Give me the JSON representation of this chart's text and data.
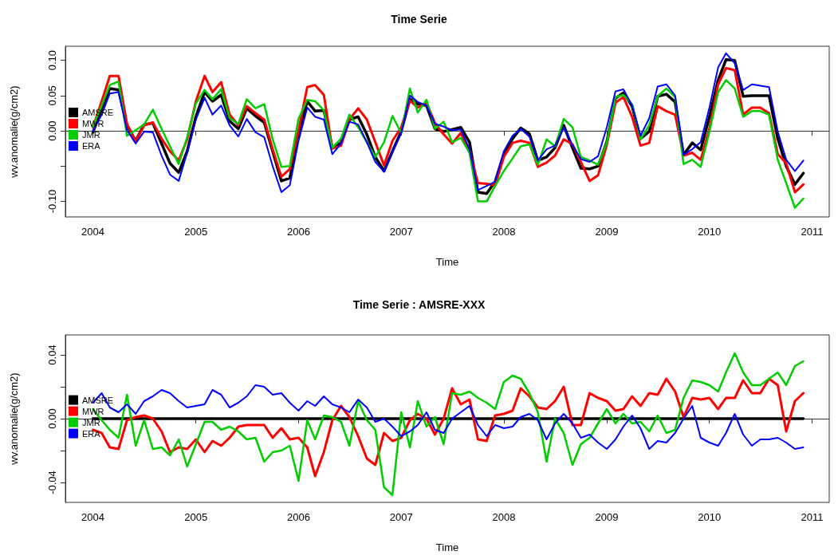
{
  "chart_data": [
    {
      "type": "line",
      "title": "Time Serie",
      "xlabel": "Time",
      "ylabel": "wv.anomalie(g/cm2)",
      "legend": "left",
      "x": [
        "2004-01",
        "2004-02",
        "2004-03",
        "2004-04",
        "2004-05",
        "2004-06",
        "2004-07",
        "2004-08",
        "2004-09",
        "2004-10",
        "2004-11",
        "2004-12",
        "2005-01",
        "2005-02",
        "2005-03",
        "2005-04",
        "2005-05",
        "2005-06",
        "2005-07",
        "2005-08",
        "2005-09",
        "2005-10",
        "2005-11",
        "2005-12",
        "2006-01",
        "2006-02",
        "2006-03",
        "2006-04",
        "2006-05",
        "2006-06",
        "2006-07",
        "2006-08",
        "2006-09",
        "2006-10",
        "2006-11",
        "2006-12",
        "2007-01",
        "2007-02",
        "2007-03",
        "2007-04",
        "2007-05",
        "2007-06",
        "2007-07",
        "2007-08",
        "2007-09",
        "2007-10",
        "2007-11",
        "2007-12",
        "2008-01",
        "2008-02",
        "2008-03",
        "2008-04",
        "2008-05",
        "2008-06",
        "2008-07",
        "2008-08",
        "2008-09",
        "2008-10",
        "2008-11",
        "2008-12",
        "2009-01",
        "2009-02",
        "2009-03",
        "2009-04",
        "2009-05",
        "2009-06",
        "2009-07",
        "2009-08",
        "2009-09",
        "2009-10",
        "2009-11",
        "2009-12",
        "2010-01",
        "2010-02",
        "2010-03",
        "2010-04",
        "2010-05",
        "2010-06",
        "2010-07",
        "2010-08",
        "2010-09",
        "2010-10",
        "2010-11",
        "2010-12"
      ],
      "xlim": [
        "2003-09-25",
        "2011-03-03"
      ],
      "xticks": [
        "2004",
        "2005",
        "2006",
        "2007",
        "2008",
        "2009",
        "2010",
        "2011"
      ],
      "ylim": [
        -0.122,
        0.12
      ],
      "yticks": [
        {
          "value": -0.1,
          "label": "-0.10"
        },
        {
          "value": -0.05,
          "label": null
        },
        {
          "value": 0,
          "label": "0.00"
        },
        {
          "value": 0.05,
          "label": "0.05"
        },
        {
          "value": 0.1,
          "label": "0.10"
        }
      ],
      "series": [
        {
          "name": "AMSRE",
          "color": "#000000",
          "values": [
            -0.002,
            0.031,
            0.06,
            0.058,
            0.008,
            -0.014,
            0.009,
            0.011,
            -0.018,
            -0.046,
            -0.059,
            -0.029,
            0.02,
            0.055,
            0.042,
            0.051,
            0.014,
            0.003,
            0.032,
            0.021,
            0.012,
            -0.029,
            -0.071,
            -0.067,
            -0.003,
            0.042,
            0.028,
            0.029,
            -0.024,
            -0.017,
            0.016,
            0.02,
            -0.005,
            -0.037,
            -0.057,
            -0.029,
            -0.001,
            0.045,
            0.038,
            0.036,
            0.003,
            -0.001,
            0.002,
            0.005,
            -0.016,
            -0.087,
            -0.089,
            -0.072,
            -0.033,
            -0.011,
            0.004,
            -0.004,
            -0.042,
            -0.037,
            -0.024,
            0.008,
            -0.024,
            -0.053,
            -0.054,
            -0.05,
            -0.016,
            0.046,
            0.054,
            0.035,
            -0.011,
            -0.001,
            0.049,
            0.052,
            0.041,
            -0.034,
            -0.017,
            -0.027,
            0.02,
            0.072,
            0.101,
            0.1,
            0.049,
            0.05,
            0.05,
            0.05,
            -0.011,
            -0.05,
            -0.076,
            -0.06
          ]
        },
        {
          "name": "MWR",
          "color": "#ff0000",
          "values": [
            0.005,
            0.042,
            0.078,
            0.078,
            0.01,
            -0.015,
            0.008,
            0.012,
            -0.011,
            -0.029,
            -0.042,
            -0.012,
            0.042,
            0.078,
            0.055,
            0.069,
            0.023,
            0.008,
            0.035,
            0.025,
            0.016,
            -0.026,
            -0.065,
            -0.054,
            0.001,
            0.062,
            0.065,
            0.051,
            -0.025,
            -0.021,
            0.016,
            0.032,
            0.016,
            -0.016,
            -0.049,
            -0.014,
            0.005,
            0.043,
            0.033,
            0.04,
            0.011,
            -0.005,
            -0.018,
            -0.003,
            -0.029,
            -0.074,
            -0.075,
            -0.077,
            -0.037,
            -0.017,
            -0.014,
            -0.017,
            -0.051,
            -0.045,
            -0.035,
            -0.012,
            -0.019,
            -0.044,
            -0.071,
            -0.063,
            -0.02,
            0.04,
            0.048,
            0.02,
            -0.021,
            -0.017,
            0.035,
            0.028,
            0.023,
            -0.035,
            -0.031,
            -0.041,
            0.003,
            0.066,
            0.089,
            0.086,
            0.023,
            0.033,
            0.033,
            0.025,
            -0.033,
            -0.046,
            -0.087,
            -0.076
          ]
        },
        {
          "name": "JMR",
          "color": "#00cc00",
          "values": [
            0.006,
            0.036,
            0.065,
            0.07,
            -0.007,
            0.001,
            0.009,
            0.03,
            0.003,
            -0.022,
            -0.047,
            -0.009,
            0.039,
            0.058,
            0.045,
            0.059,
            0.018,
            0.01,
            0.045,
            0.032,
            0.038,
            -0.012,
            -0.051,
            -0.05,
            0.017,
            0.044,
            0.042,
            0.029,
            -0.024,
            -0.011,
            0.023,
            0.005,
            -0.016,
            -0.037,
            -0.016,
            0.021,
            -0.003,
            0.06,
            0.026,
            0.044,
            0.003,
            0.013,
            -0.016,
            -0.01,
            -0.031,
            -0.1,
            -0.1,
            -0.078,
            -0.057,
            -0.039,
            -0.022,
            -0.019,
            -0.048,
            -0.012,
            -0.022,
            0.017,
            0.005,
            -0.037,
            -0.042,
            -0.048,
            -0.017,
            0.048,
            0.051,
            0.038,
            -0.012,
            0.008,
            0.049,
            0.06,
            0.048,
            -0.047,
            -0.041,
            -0.051,
            -0.001,
            0.055,
            0.072,
            0.06,
            0.02,
            0.028,
            0.028,
            0.023,
            -0.041,
            -0.074,
            -0.109,
            -0.096
          ]
        },
        {
          "name": "ERA",
          "color": "#0000ff",
          "values": [
            0.0,
            0.023,
            0.053,
            0.055,
            0.001,
            -0.018,
            -0.001,
            -0.002,
            -0.035,
            -0.062,
            -0.071,
            -0.031,
            0.016,
            0.047,
            0.023,
            0.036,
            0.008,
            -0.008,
            0.017,
            -0.002,
            -0.009,
            -0.05,
            -0.087,
            -0.077,
            -0.014,
            0.033,
            0.02,
            0.016,
            -0.033,
            -0.018,
            0.013,
            0.009,
            -0.016,
            -0.044,
            -0.058,
            -0.029,
            -0.003,
            0.05,
            0.041,
            0.036,
            0.01,
            0.006,
            0.001,
            0.002,
            -0.026,
            -0.084,
            -0.078,
            -0.072,
            -0.029,
            -0.007,
            0.003,
            -0.008,
            -0.042,
            -0.026,
            -0.021,
            0.005,
            -0.02,
            -0.04,
            -0.044,
            -0.036,
            0.005,
            0.056,
            0.059,
            0.036,
            -0.007,
            0.018,
            0.063,
            0.066,
            0.05,
            -0.034,
            -0.026,
            -0.016,
            0.033,
            0.09,
            0.11,
            0.096,
            0.058,
            0.066,
            0.064,
            0.062,
            -0.001,
            -0.041,
            -0.057,
            -0.042
          ]
        }
      ]
    },
    {
      "type": "line",
      "title": "Time Serie : AMSRE-XXX",
      "xlabel": "Time",
      "ylabel": "wv.anomalie(g/cm2)",
      "legend": "left",
      "x": [
        "2004-01",
        "2004-02",
        "2004-03",
        "2004-04",
        "2004-05",
        "2004-06",
        "2004-07",
        "2004-08",
        "2004-09",
        "2004-10",
        "2004-11",
        "2004-12",
        "2005-01",
        "2005-02",
        "2005-03",
        "2005-04",
        "2005-05",
        "2005-06",
        "2005-07",
        "2005-08",
        "2005-09",
        "2005-10",
        "2005-11",
        "2005-12",
        "2006-01",
        "2006-02",
        "2006-03",
        "2006-04",
        "2006-05",
        "2006-06",
        "2006-07",
        "2006-08",
        "2006-09",
        "2006-10",
        "2006-11",
        "2006-12",
        "2007-01",
        "2007-02",
        "2007-03",
        "2007-04",
        "2007-05",
        "2007-06",
        "2007-07",
        "2007-08",
        "2007-09",
        "2007-10",
        "2007-11",
        "2007-12",
        "2008-01",
        "2008-02",
        "2008-03",
        "2008-04",
        "2008-05",
        "2008-06",
        "2008-07",
        "2008-08",
        "2008-09",
        "2008-10",
        "2008-11",
        "2008-12",
        "2009-01",
        "2009-02",
        "2009-03",
        "2009-04",
        "2009-05",
        "2009-06",
        "2009-07",
        "2009-08",
        "2009-09",
        "2009-10",
        "2009-11",
        "2009-12",
        "2010-01",
        "2010-02",
        "2010-03",
        "2010-04",
        "2010-05",
        "2010-06",
        "2010-07",
        "2010-08",
        "2010-09",
        "2010-10",
        "2010-11",
        "2010-12"
      ],
      "xlim": [
        "2003-09-25",
        "2011-03-03"
      ],
      "xticks": [
        "2004",
        "2005",
        "2006",
        "2007",
        "2008",
        "2009",
        "2010",
        "2011"
      ],
      "ylim": [
        -0.0525,
        0.0525
      ],
      "yticks": [
        {
          "value": -0.04,
          "label": "-0.04"
        },
        {
          "value": -0.02,
          "label": null
        },
        {
          "value": 0,
          "label": "0.00"
        },
        {
          "value": 0.02,
          "label": null
        },
        {
          "value": 0.04,
          "label": "0.04"
        }
      ],
      "series": [
        {
          "name": "AMSRE",
          "color": "#000000",
          "values": [
            0,
            0,
            0,
            0,
            0,
            0,
            0,
            0,
            0,
            0,
            0,
            0,
            0,
            0,
            0,
            0,
            0,
            0,
            0,
            0,
            0,
            0,
            0,
            0,
            0,
            0,
            0,
            0,
            0,
            0,
            0,
            0,
            0,
            0,
            0,
            0,
            0,
            0,
            0,
            0,
            0,
            0,
            0,
            0,
            0,
            0,
            0,
            0,
            0,
            0,
            0,
            0,
            0,
            0,
            0,
            0,
            0,
            0,
            0,
            0,
            0,
            0,
            0,
            0,
            0,
            0,
            0,
            0,
            0,
            0,
            0,
            0,
            0,
            0,
            0,
            0,
            0,
            0,
            0,
            0,
            0,
            0,
            0,
            0
          ]
        },
        {
          "name": "MWR",
          "color": "#ff0000",
          "values": [
            -0.007,
            -0.009,
            -0.018,
            -0.019,
            -0.001,
            0.001,
            0.002,
            0.0,
            -0.008,
            -0.021,
            -0.018,
            -0.019,
            -0.013,
            -0.021,
            -0.014,
            -0.017,
            -0.012,
            -0.005,
            -0.004,
            -0.004,
            -0.004,
            -0.012,
            -0.006,
            -0.013,
            -0.012,
            -0.018,
            -0.036,
            -0.021,
            -0.001,
            0.008,
            0.001,
            -0.011,
            -0.025,
            -0.029,
            -0.009,
            -0.014,
            -0.012,
            -0.001,
            0.003,
            0.0,
            -0.01,
            0.0,
            0.019,
            0.009,
            0.012,
            -0.013,
            -0.014,
            0.002,
            0.003,
            0.005,
            0.019,
            0.014,
            0.007,
            0.006,
            0.011,
            0.02,
            -0.004,
            -0.004,
            0.016,
            0.013,
            0.011,
            0.005,
            0.006,
            0.014,
            0.008,
            0.016,
            0.015,
            0.025,
            0.017,
            0.001,
            0.013,
            0.012,
            0.013,
            0.006,
            0.013,
            0.013,
            0.024,
            0.016,
            0.016,
            0.025,
            0.021,
            -0.008,
            0.011,
            0.016
          ]
        },
        {
          "name": "JMR",
          "color": "#00cc00",
          "values": [
            0.006,
            -0.001,
            -0.007,
            -0.012,
            0.015,
            -0.017,
            -0.001,
            -0.019,
            -0.018,
            -0.023,
            -0.013,
            -0.03,
            -0.016,
            -0.002,
            -0.002,
            -0.007,
            -0.005,
            -0.008,
            -0.013,
            -0.012,
            -0.027,
            -0.021,
            -0.02,
            -0.017,
            -0.039,
            -0.001,
            -0.013,
            0.002,
            0.001,
            -0.002,
            -0.017,
            0.011,
            -0.001,
            -0.007,
            -0.043,
            -0.048,
            0.004,
            -0.018,
            0.011,
            -0.005,
            0.001,
            -0.016,
            0.016,
            0.015,
            0.017,
            0.013,
            0.01,
            0.006,
            0.023,
            0.027,
            0.025,
            0.016,
            0.004,
            -0.027,
            0.0,
            -0.009,
            -0.029,
            -0.016,
            -0.012,
            -0.003,
            0.006,
            -0.003,
            0.003,
            -0.003,
            -0.002,
            -0.008,
            0.002,
            -0.009,
            -0.007,
            0.013,
            0.024,
            0.023,
            0.021,
            0.017,
            0.029,
            0.041,
            0.029,
            0.021,
            0.021,
            0.025,
            0.029,
            0.021,
            0.033,
            0.036
          ]
        },
        {
          "name": "ERA",
          "color": "#0000ff",
          "values": [
            0.01,
            0.016,
            0.007,
            0.004,
            0.009,
            0.003,
            0.011,
            0.014,
            0.018,
            0.016,
            0.011,
            0.007,
            0.008,
            0.009,
            0.018,
            0.015,
            0.007,
            0.01,
            0.014,
            0.021,
            0.02,
            0.015,
            0.016,
            0.01,
            0.005,
            0.011,
            0.008,
            0.014,
            0.009,
            0.007,
            0.004,
            0.012,
            0.007,
            -0.002,
            0.0,
            -0.005,
            -0.011,
            -0.008,
            -0.004,
            0.004,
            -0.007,
            -0.009,
            0.0,
            0.004,
            0.008,
            -0.004,
            -0.011,
            -0.004,
            -0.006,
            -0.005,
            0.001,
            0.003,
            -0.001,
            -0.013,
            -0.003,
            0.003,
            -0.003,
            -0.012,
            -0.01,
            -0.015,
            -0.019,
            -0.013,
            -0.005,
            0.002,
            -0.006,
            -0.019,
            -0.014,
            -0.015,
            -0.009,
            0.0,
            0.008,
            -0.012,
            -0.015,
            -0.017,
            -0.009,
            0.003,
            -0.01,
            -0.017,
            -0.013,
            -0.013,
            -0.012,
            -0.015,
            -0.019,
            -0.018
          ]
        }
      ]
    }
  ]
}
